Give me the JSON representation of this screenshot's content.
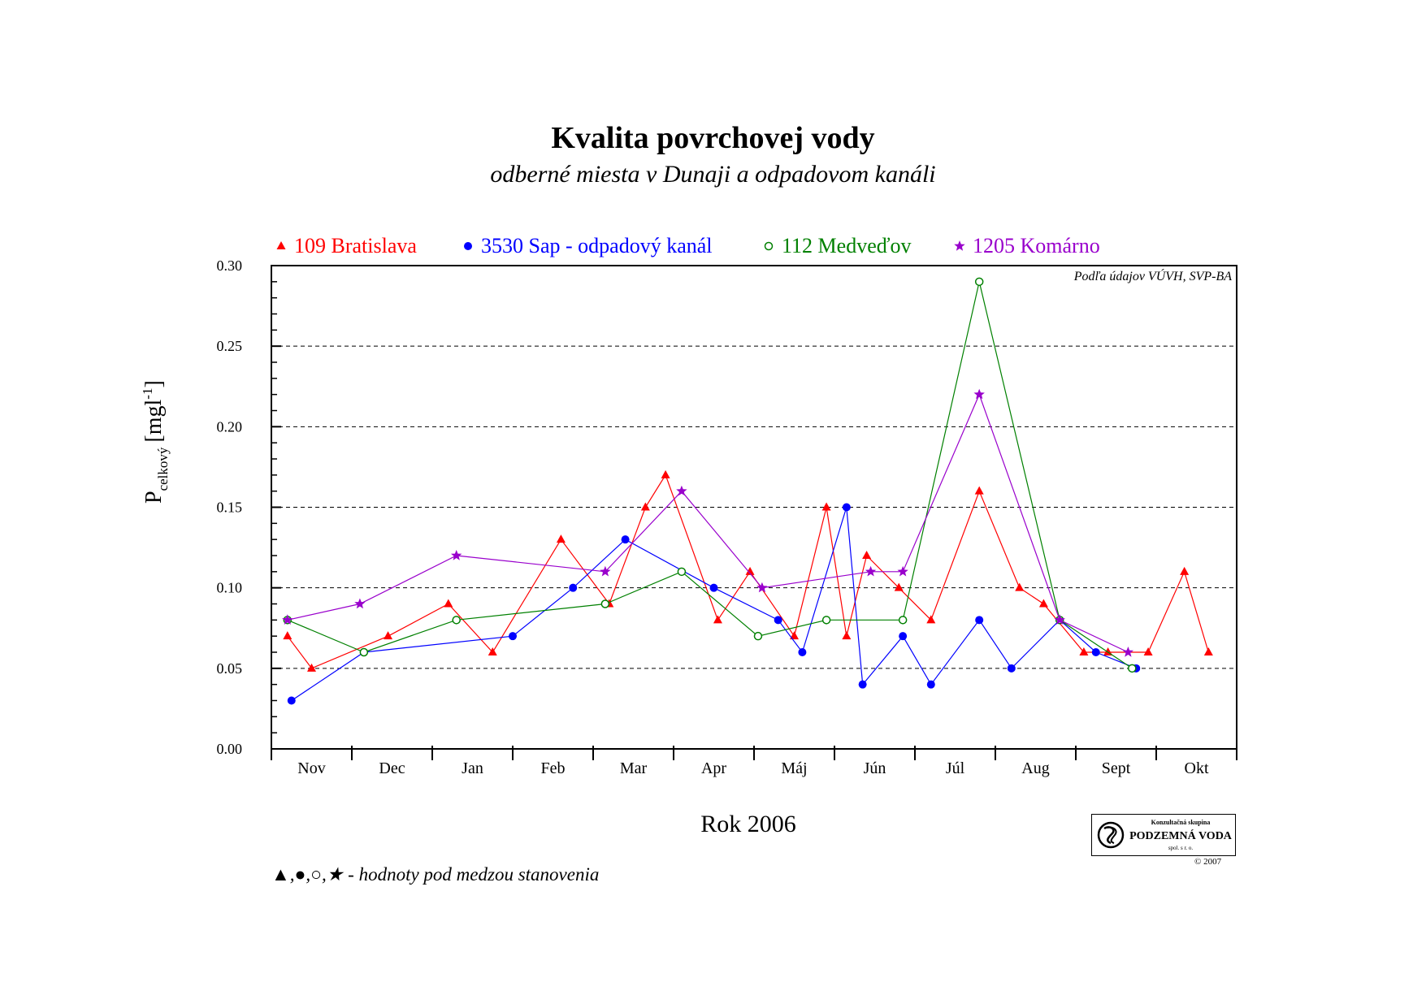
{
  "chart_data": {
    "type": "line",
    "title": "Kvalita povrchovej vody",
    "subtitle": "odberné miesta v Dunaji a odpadovom kanáli",
    "xlabel": "Rok 2006",
    "ylabel": "P",
    "ylabel_subscript": "celkový",
    "ylabel_unit": "[mgl",
    "ylabel_unit_sup": "-1",
    "ylabel_unit_close": "]",
    "source_note": "Podľa údajov VÚVH, SVP-BA",
    "footnote": "▲,●,○,★ - hodnoty pod medzou stanovenia",
    "ylim": [
      0,
      0.3
    ],
    "xlim": [
      0,
      12
    ],
    "yticks": [
      "0.00",
      "0.05",
      "0.10",
      "0.15",
      "0.20",
      "0.25",
      "0.30"
    ],
    "ytick_values": [
      0,
      0.05,
      0.1,
      0.15,
      0.2,
      0.25,
      0.3
    ],
    "categories": [
      "Nov",
      "Dec",
      "Jan",
      "Feb",
      "Mar",
      "Apr",
      "Máj",
      "Jún",
      "Júl",
      "Aug",
      "Sept",
      "Okt"
    ],
    "grid": "horizontal dashed",
    "legend_position": "top",
    "series": [
      {
        "name": "109 Bratislava",
        "color": "#ff0000",
        "marker": "triangle-filled",
        "x": [
          0.2,
          0.5,
          1.45,
          2.2,
          2.75,
          3.6,
          4.2,
          4.65,
          4.9,
          5.55,
          5.95,
          6.5,
          6.9,
          7.15,
          7.4,
          7.8,
          8.2,
          8.8,
          9.3,
          9.6,
          10.1,
          10.4,
          10.9,
          11.35,
          11.65
        ],
        "values": [
          0.07,
          0.05,
          0.07,
          0.09,
          0.06,
          0.13,
          0.09,
          0.15,
          0.17,
          0.08,
          0.11,
          0.07,
          0.15,
          0.07,
          0.12,
          0.1,
          0.08,
          0.16,
          0.1,
          0.09,
          0.06,
          0.06,
          0.06,
          0.11,
          0.06
        ]
      },
      {
        "name": "3530 Sap - odpadový kanál",
        "color": "#0000ff",
        "marker": "circle-filled",
        "x": [
          0.25,
          1.15,
          3.0,
          3.75,
          4.4,
          5.5,
          6.3,
          6.6,
          7.15,
          7.35,
          7.85,
          8.2,
          8.8,
          9.2,
          9.8,
          10.25,
          10.75
        ],
        "values": [
          0.03,
          0.06,
          0.07,
          0.1,
          0.13,
          0.1,
          0.08,
          0.06,
          0.15,
          0.04,
          0.07,
          0.04,
          0.08,
          0.05,
          0.08,
          0.06,
          0.05
        ]
      },
      {
        "name": "112 Medveďov",
        "color": "#008000",
        "marker": "circle-open",
        "x": [
          0.2,
          1.15,
          2.3,
          4.15,
          5.1,
          6.05,
          6.9,
          7.85,
          8.8,
          9.8,
          10.7
        ],
        "values": [
          0.08,
          0.06,
          0.08,
          0.09,
          0.11,
          0.07,
          0.08,
          0.08,
          0.29,
          0.08,
          0.05
        ]
      },
      {
        "name": "1205 Komárno",
        "color": "#9900cc",
        "marker": "star",
        "x": [
          0.2,
          1.1,
          2.3,
          4.15,
          5.1,
          6.1,
          7.45,
          7.85,
          8.8,
          9.8,
          10.65
        ],
        "values": [
          0.08,
          0.09,
          0.12,
          0.11,
          0.16,
          0.1,
          0.11,
          0.11,
          0.22,
          0.08,
          0.06
        ]
      }
    ]
  },
  "logo": {
    "small_text": "Konzultačná skupina",
    "name": "PODZEMNÁ VODA",
    "sub_text": "spol. s r. o.",
    "copyright": "© 2007"
  }
}
